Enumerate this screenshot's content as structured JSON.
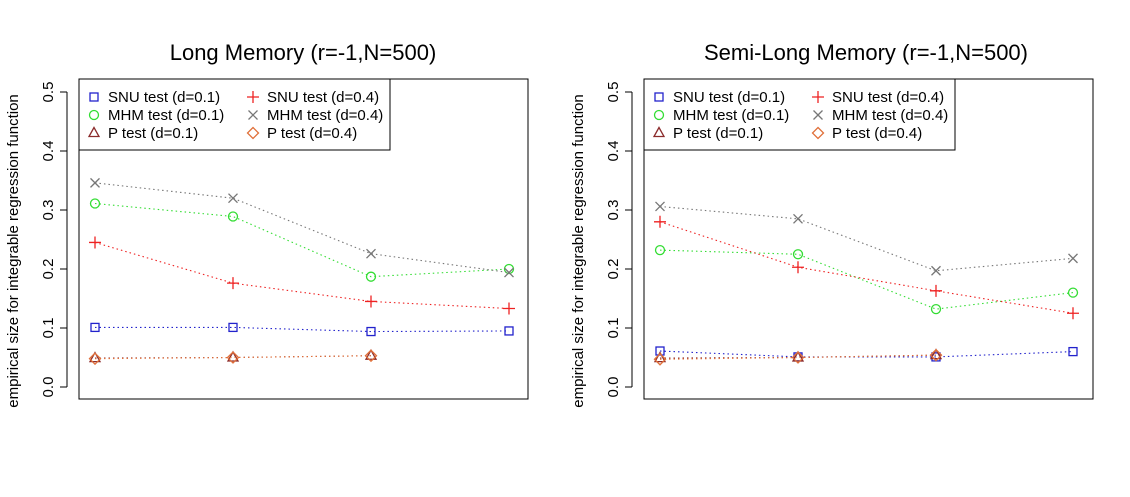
{
  "chart_data": [
    {
      "type": "line",
      "title": "Long Memory (r=-1,N=500)",
      "xlabel": "",
      "ylabel": "empirical size for integrable regression function",
      "ylim": [
        -0.02,
        0.52
      ],
      "yticks": [
        "0.0",
        "0.1",
        "0.2",
        "0.3",
        "0.4",
        "0.5"
      ],
      "grid": false,
      "legend_position": "top-left",
      "x": [
        1,
        2,
        3,
        4
      ],
      "series": [
        {
          "name": "SNU test (d=0.1)",
          "color": "#2222cc",
          "marker": "square",
          "values": [
            0.101,
            0.101,
            0.094,
            0.095
          ]
        },
        {
          "name": "MHM test (d=0.1)",
          "color": "#33dd33",
          "marker": "circle",
          "values": [
            0.311,
            0.289,
            0.187,
            0.2
          ]
        },
        {
          "name": "P test (d=0.1)",
          "color": "#8b2b2b",
          "marker": "triangle",
          "values": [
            0.049,
            0.05,
            0.053,
            null
          ]
        },
        {
          "name": "SNU test (d=0.4)",
          "color": "#ee2222",
          "marker": "plus",
          "values": [
            0.245,
            0.176,
            0.145,
            0.133
          ]
        },
        {
          "name": "MHM test (d=0.4)",
          "color": "#777777",
          "marker": "cross",
          "values": [
            0.346,
            0.32,
            0.226,
            0.194
          ]
        },
        {
          "name": "P test (d=0.4)",
          "color": "#e0703a",
          "marker": "diamond",
          "values": [
            0.048,
            0.05,
            0.053,
            null
          ]
        }
      ]
    },
    {
      "type": "line",
      "title": "Semi-Long Memory (r=-1,N=500)",
      "xlabel": "",
      "ylabel": "empirical size for integrable regression function",
      "ylim": [
        -0.02,
        0.52
      ],
      "yticks": [
        "0.0",
        "0.1",
        "0.2",
        "0.3",
        "0.4",
        "0.5"
      ],
      "grid": false,
      "legend_position": "top-left",
      "x": [
        1,
        2,
        3,
        4
      ],
      "series": [
        {
          "name": "SNU test (d=0.1)",
          "color": "#2222cc",
          "marker": "square",
          "values": [
            0.061,
            0.051,
            0.051,
            0.06
          ]
        },
        {
          "name": "MHM test (d=0.1)",
          "color": "#33dd33",
          "marker": "circle",
          "values": [
            0.232,
            0.225,
            0.132,
            0.16
          ]
        },
        {
          "name": "P test (d=0.1)",
          "color": "#8b2b2b",
          "marker": "triangle",
          "values": [
            0.049,
            0.05,
            0.054,
            null
          ]
        },
        {
          "name": "SNU test (d=0.4)",
          "color": "#ee2222",
          "marker": "plus",
          "values": [
            0.28,
            0.203,
            0.163,
            0.125
          ]
        },
        {
          "name": "MHM test (d=0.4)",
          "color": "#777777",
          "marker": "cross",
          "values": [
            0.306,
            0.285,
            0.197,
            0.218
          ]
        },
        {
          "name": "P test (d=0.4)",
          "color": "#e0703a",
          "marker": "diamond",
          "values": [
            0.047,
            0.05,
            0.054,
            null
          ]
        }
      ]
    }
  ]
}
